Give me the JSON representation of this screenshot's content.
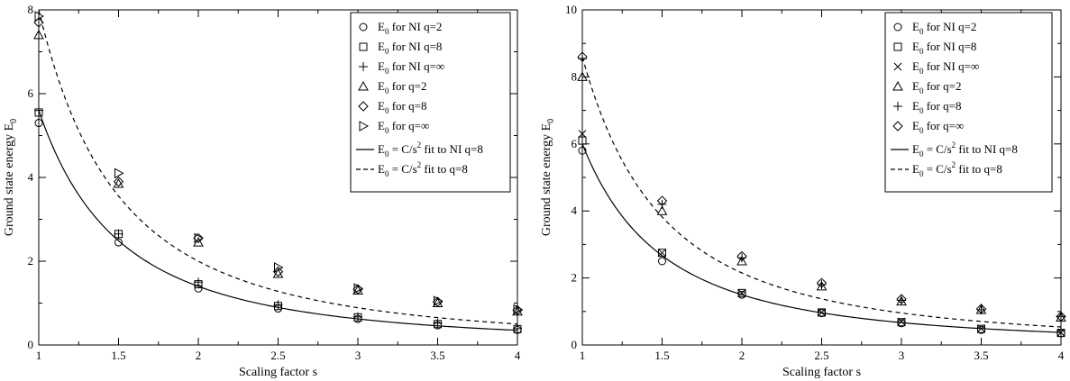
{
  "chart_data": [
    {
      "type": "scatter",
      "panel": "left",
      "xlabel": "Scaling factor s",
      "ylabel": "Ground state energy E",
      "ylabel_sub": "0",
      "xlim": [
        1,
        4
      ],
      "ylim": [
        0,
        8
      ],
      "xticks": [
        1,
        1.5,
        2,
        2.5,
        3,
        3.5,
        4
      ],
      "xtick_labels": [
        "1",
        "1.5",
        "2",
        "2.5",
        "3",
        "3.5",
        "4"
      ],
      "yticks": [
        0,
        2,
        4,
        6,
        8
      ],
      "ytick_labels": [
        "0",
        "2",
        "4",
        "6",
        "8"
      ],
      "legend_position": "top-right",
      "x": [
        1,
        1.5,
        2,
        2.5,
        3,
        3.5,
        4
      ],
      "series": [
        {
          "name": "NI q=2",
          "label": "for NI q=2",
          "marker": "circle",
          "values": [
            5.3,
            2.45,
            1.35,
            0.87,
            0.62,
            0.47,
            0.36
          ]
        },
        {
          "name": "NI q=8",
          "label": "for NI q=8",
          "marker": "square",
          "values": [
            5.55,
            2.65,
            1.45,
            0.93,
            0.66,
            0.5,
            0.38
          ]
        },
        {
          "name": "NI q=inf",
          "label": "for NI q=∞",
          "marker": "plus",
          "values": [
            5.6,
            2.65,
            1.5,
            0.96,
            0.67,
            0.52,
            0.39
          ]
        },
        {
          "name": "q=2",
          "label": "for q=2",
          "marker": "triangle-up",
          "values": [
            7.4,
            3.85,
            2.45,
            1.7,
            1.3,
            1.0,
            0.8
          ]
        },
        {
          "name": "q=8",
          "label": "for q=8",
          "marker": "diamond",
          "values": [
            7.7,
            3.9,
            2.55,
            1.75,
            1.33,
            1.03,
            0.83
          ]
        },
        {
          "name": "q=inf",
          "label": "for q=∞",
          "marker": "triangle-right",
          "values": [
            7.85,
            4.1,
            2.55,
            1.85,
            1.35,
            1.05,
            0.85
          ]
        }
      ],
      "fits": [
        {
          "name": "fit NI q=8",
          "label_pre": " = C/s",
          "label_sup": "2",
          "label_post": " fit to NI q=8",
          "style": "solid",
          "C": 5.6
        },
        {
          "name": "fit q=8",
          "label_pre": " = C/s",
          "label_sup": "2",
          "label_post": " fit to q=8",
          "style": "dashed",
          "C": 8.0
        }
      ],
      "legend_symbol": "E",
      "legend_sub": "0"
    },
    {
      "type": "scatter",
      "panel": "right",
      "xlabel": "Scaling factor s",
      "ylabel": "Ground state energy E",
      "ylabel_sub": "0",
      "xlim": [
        1,
        4
      ],
      "ylim": [
        0,
        10
      ],
      "xticks": [
        1,
        1.5,
        2,
        2.5,
        3,
        3.5,
        4
      ],
      "xtick_labels": [
        "1",
        "1.5",
        "2",
        "2.5",
        "3",
        "3.5",
        "4"
      ],
      "yticks": [
        0,
        2,
        4,
        6,
        8,
        10
      ],
      "ytick_labels": [
        "0",
        "2",
        "4",
        "6",
        "8",
        "10"
      ],
      "legend_position": "top-right",
      "x": [
        1,
        1.5,
        2,
        2.5,
        3,
        3.5,
        4
      ],
      "series": [
        {
          "name": "NI q=2",
          "label": "for NI q=2",
          "marker": "circle",
          "values": [
            5.8,
            2.5,
            1.5,
            0.95,
            0.65,
            0.45,
            0.35
          ]
        },
        {
          "name": "NI q=8",
          "label": "for NI q=8",
          "marker": "square",
          "values": [
            6.1,
            2.75,
            1.55,
            0.97,
            0.68,
            0.48,
            0.36
          ]
        },
        {
          "name": "NI q=inf",
          "label": "for NI q=∞",
          "marker": "cross",
          "values": [
            6.3,
            2.75,
            1.55,
            0.97,
            0.7,
            0.49,
            0.37
          ]
        },
        {
          "name": "q=2",
          "label": "for q=2",
          "marker": "triangle-up",
          "values": [
            8.0,
            4.0,
            2.5,
            1.75,
            1.3,
            1.05,
            0.82
          ]
        },
        {
          "name": "q=8",
          "label": "for q=8",
          "marker": "plus",
          "values": [
            8.55,
            4.2,
            2.6,
            1.8,
            1.33,
            1.05,
            0.85
          ]
        },
        {
          "name": "q=inf",
          "label": "for q=∞",
          "marker": "diamond",
          "values": [
            8.6,
            4.3,
            2.65,
            1.85,
            1.37,
            1.08,
            0.85
          ]
        }
      ],
      "fits": [
        {
          "name": "fit NI q=8",
          "label_pre": " = C/s",
          "label_sup": "2",
          "label_post": " fit to NI q=8",
          "style": "solid",
          "C": 6.0
        },
        {
          "name": "fit q=8",
          "label_pre": " = C/s",
          "label_sup": "2",
          "label_post": " fit to q=8",
          "style": "dashed",
          "C": 8.6
        }
      ],
      "legend_symbol": "E",
      "legend_sub": "0"
    }
  ]
}
